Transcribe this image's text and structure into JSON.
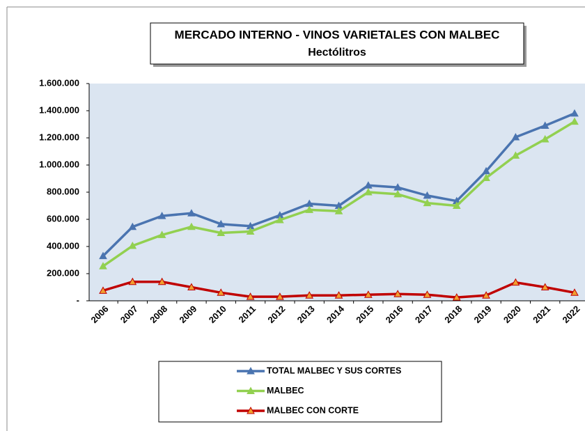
{
  "chart_data": {
    "type": "line",
    "title": "MERCADO INTERNO - VINOS VARIETALES CON MALBEC",
    "subtitle": "Hectólitros",
    "categories": [
      "2006",
      "2007",
      "2008",
      "2009",
      "2010",
      "2011",
      "2012",
      "2013",
      "2014",
      "2015",
      "2016",
      "2017",
      "2018",
      "2019",
      "2020",
      "2021",
      "2022"
    ],
    "series": [
      {
        "name": "TOTAL MALBEC Y SUS CORTES",
        "color": "#4a74b0",
        "marker_color": "#4a74b0",
        "values": [
          330000,
          545000,
          625000,
          645000,
          565000,
          550000,
          630000,
          715000,
          700000,
          850000,
          835000,
          775000,
          735000,
          955000,
          1205000,
          1290000,
          1380000
        ]
      },
      {
        "name": "MALBEC",
        "color": "#92d050",
        "marker_color": "#92d050",
        "values": [
          255000,
          405000,
          485000,
          545000,
          500000,
          510000,
          595000,
          670000,
          660000,
          800000,
          785000,
          720000,
          700000,
          905000,
          1070000,
          1190000,
          1320000
        ]
      },
      {
        "name": "MALBEC  CON CORTE",
        "color": "#c00000",
        "marker_color": "#f0a030",
        "values": [
          75000,
          140000,
          140000,
          100000,
          60000,
          30000,
          30000,
          40000,
          40000,
          45000,
          50000,
          45000,
          25000,
          40000,
          135000,
          100000,
          60000
        ]
      }
    ],
    "ylim": [
      0,
      1600000
    ],
    "yticks": [
      {
        "value": 0,
        "label": "-"
      },
      {
        "value": 200000,
        "label": "200.000"
      },
      {
        "value": 400000,
        "label": "400.000"
      },
      {
        "value": 600000,
        "label": "600.000"
      },
      {
        "value": 800000,
        "label": "800.000"
      },
      {
        "value": 1000000,
        "label": "1.000.000"
      },
      {
        "value": 1200000,
        "label": "1.200.000"
      },
      {
        "value": 1400000,
        "label": "1.400.000"
      },
      {
        "value": 1600000,
        "label": "1.600.000"
      }
    ],
    "grid": false,
    "plot_background": "#dbe5f1",
    "legend": "bottom"
  }
}
